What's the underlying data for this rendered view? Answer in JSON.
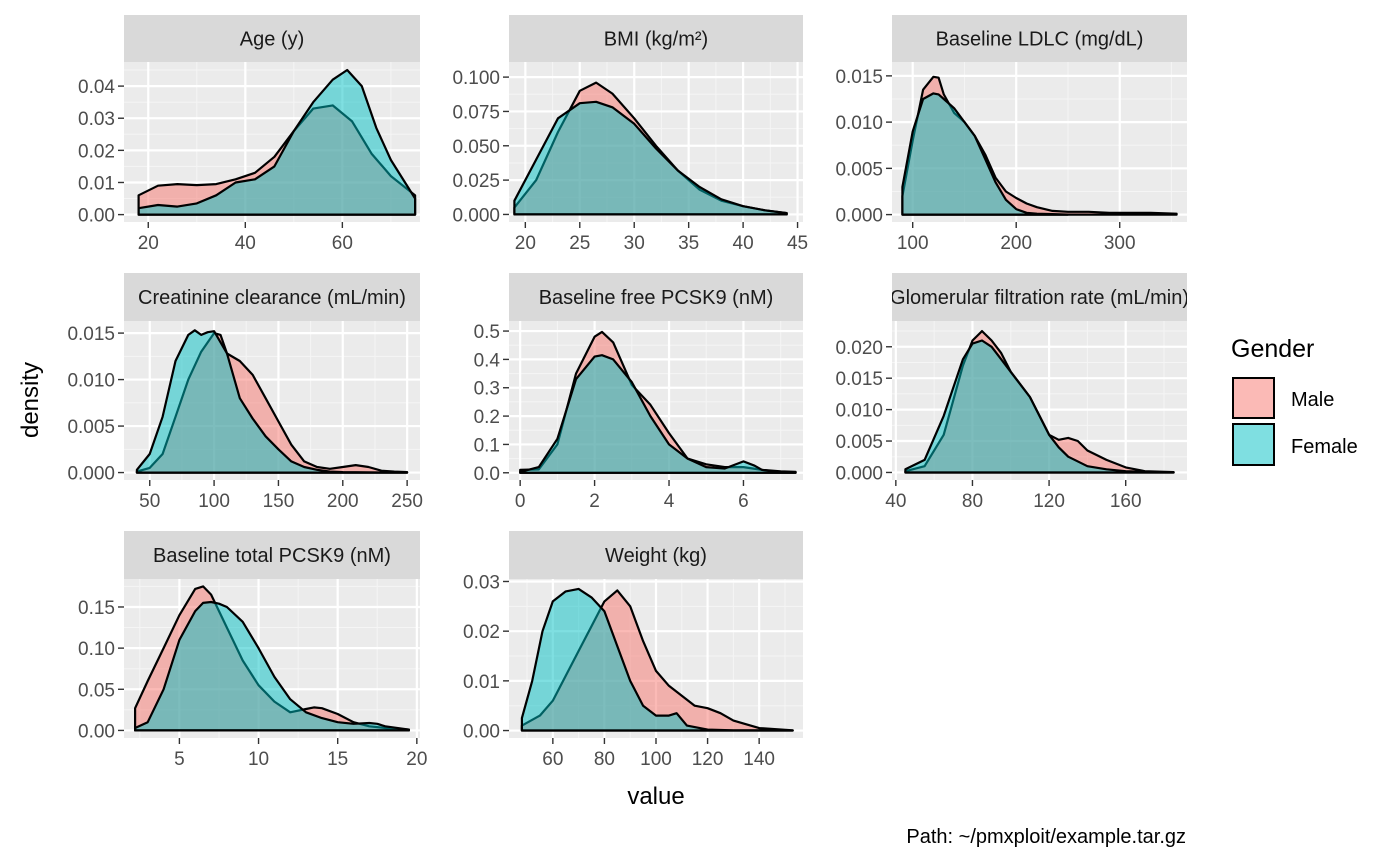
{
  "chart_data": {
    "type": "area",
    "xlabel": "value",
    "ylabel": "density",
    "caption": "Path: ~/pmxploit/example.tar.gz",
    "legend": {
      "title": "Gender",
      "position": "right",
      "entries": [
        {
          "name": "Male",
          "color": "#F8766D"
        },
        {
          "name": "Female",
          "color": "#00BFC4"
        }
      ]
    },
    "grid": true,
    "panels": [
      {
        "title": "Age (y)",
        "xlim": [
          15,
          76
        ],
        "ylim": [
          -0.0023,
          0.0475
        ],
        "xticks": [
          20,
          40,
          60
        ],
        "xtick_labels": [
          "20",
          "40",
          "60"
        ],
        "yticks": [
          0,
          0.01,
          0.02,
          0.03,
          0.04
        ],
        "ytick_labels": [
          "0.00",
          "0.01",
          "0.02",
          "0.03",
          "0.04"
        ],
        "series": [
          {
            "name": "Male",
            "x": [
              18,
              22,
              26,
              30,
              34,
              38,
              42,
              46,
              50,
              54,
              58,
              62,
              66,
              70,
              75
            ],
            "y": [
              0.006,
              0.009,
              0.0095,
              0.0092,
              0.0095,
              0.011,
              0.013,
              0.018,
              0.026,
              0.033,
              0.034,
              0.029,
              0.019,
              0.012,
              0.006
            ]
          },
          {
            "name": "Female",
            "x": [
              18,
              22,
              26,
              30,
              34,
              38,
              42,
              46,
              50,
              54,
              58,
              61,
              64,
              67,
              70,
              75
            ],
            "y": [
              0.002,
              0.003,
              0.0025,
              0.0035,
              0.006,
              0.01,
              0.011,
              0.015,
              0.026,
              0.035,
              0.042,
              0.045,
              0.04,
              0.027,
              0.017,
              0.005
            ]
          }
        ]
      },
      {
        "title": "BMI (kg/m²)",
        "xlim": [
          18.5,
          45.5
        ],
        "ylim": [
          -0.0055,
          0.111
        ],
        "xticks": [
          20,
          25,
          30,
          35,
          40,
          45
        ],
        "xtick_labels": [
          "20",
          "25",
          "30",
          "35",
          "40",
          "45"
        ],
        "yticks": [
          0,
          0.025,
          0.05,
          0.075,
          0.1
        ],
        "ytick_labels": [
          "0.000",
          "0.025",
          "0.050",
          "0.075",
          "0.100"
        ],
        "series": [
          {
            "name": "Male",
            "x": [
              19,
              21,
              23,
              25,
              26.5,
              28,
              30,
              32,
              34,
              36,
              38,
              40,
              42,
              44
            ],
            "y": [
              0.005,
              0.025,
              0.06,
              0.09,
              0.096,
              0.088,
              0.07,
              0.05,
              0.032,
              0.018,
              0.01,
              0.006,
              0.003,
              0.001
            ]
          },
          {
            "name": "Female",
            "x": [
              19,
              21,
              23,
              25,
              26.5,
              28,
              30,
              32,
              34,
              36,
              38,
              40,
              42,
              44
            ],
            "y": [
              0.01,
              0.04,
              0.07,
              0.081,
              0.082,
              0.078,
              0.066,
              0.048,
              0.032,
              0.02,
              0.011,
              0.006,
              0.003,
              0.001
            ]
          }
        ]
      },
      {
        "title": "Baseline LDLC (mg/dL)",
        "xlim": [
          80,
          365
        ],
        "ylim": [
          -0.0008,
          0.0165
        ],
        "xticks": [
          100,
          200,
          300
        ],
        "xtick_labels": [
          "100",
          "200",
          "300"
        ],
        "yticks": [
          0,
          0.005,
          0.01,
          0.015
        ],
        "ytick_labels": [
          "0.000",
          "0.005",
          "0.010",
          "0.015"
        ],
        "series": [
          {
            "name": "Male",
            "x": [
              90,
              100,
              110,
              120,
              125,
              130,
              140,
              150,
              160,
              170,
              180,
              190,
              200,
              210,
              220,
              235,
              250,
              270,
              290,
              310,
              330,
              355
            ],
            "y": [
              0.002,
              0.008,
              0.0135,
              0.0149,
              0.0148,
              0.013,
              0.011,
              0.01,
              0.0085,
              0.0065,
              0.004,
              0.0025,
              0.0018,
              0.0012,
              0.0008,
              0.0004,
              0.0003,
              0.0003,
              0.0002,
              0.0002,
              0.0002,
              0.0001
            ]
          },
          {
            "name": "Female",
            "x": [
              90,
              100,
              110,
              120,
              125,
              130,
              140,
              150,
              160,
              170,
              180,
              190,
              200,
              210,
              220,
              235,
              250
            ],
            "y": [
              0.003,
              0.009,
              0.0125,
              0.0131,
              0.013,
              0.0125,
              0.0115,
              0.01,
              0.0085,
              0.006,
              0.0035,
              0.0016,
              0.0006,
              0.0002,
              0.0001,
              5e-05,
              0
            ]
          }
        ]
      },
      {
        "title": "Creatinine clearance (mL/min)",
        "xlim": [
          30,
          260
        ],
        "ylim": [
          -0.0008,
          0.0163
        ],
        "xticks": [
          50,
          100,
          150,
          200,
          250
        ],
        "xtick_labels": [
          "50",
          "100",
          "150",
          "200",
          "250"
        ],
        "yticks": [
          0,
          0.005,
          0.01,
          0.015
        ],
        "ytick_labels": [
          "0.000",
          "0.005",
          "0.010",
          "0.015"
        ],
        "series": [
          {
            "name": "Male",
            "x": [
              40,
              50,
              60,
              70,
              80,
              90,
              100,
              105,
              110,
              120,
              130,
              140,
              150,
              160,
              170,
              180,
              190,
              200,
              210,
              220,
              230,
              240,
              250
            ],
            "y": [
              0.0001,
              0.0005,
              0.002,
              0.006,
              0.01,
              0.013,
              0.015,
              0.0148,
              0.0128,
              0.012,
              0.0105,
              0.008,
              0.0055,
              0.003,
              0.0012,
              0.0006,
              0.0004,
              0.0006,
              0.0008,
              0.0006,
              0.0002,
              0.0001,
              5e-05
            ]
          },
          {
            "name": "Female",
            "x": [
              40,
              50,
              60,
              70,
              80,
              85,
              90,
              95,
              100,
              110,
              120,
              130,
              140,
              150,
              160,
              170,
              180,
              190,
              200,
              220,
              250
            ],
            "y": [
              0.0003,
              0.002,
              0.006,
              0.012,
              0.0148,
              0.0153,
              0.0148,
              0.0151,
              0.0152,
              0.0128,
              0.008,
              0.0058,
              0.0039,
              0.0025,
              0.0012,
              0.0006,
              0.0003,
              0.0001,
              5e-05,
              2e-05,
              0
            ]
          }
        ]
      },
      {
        "title": "Baseline free PCSK9 (nM)",
        "xlim": [
          -0.3,
          7.6
        ],
        "ylim": [
          -0.0255,
          0.5355
        ],
        "xticks": [
          0,
          2,
          4,
          6
        ],
        "xtick_labels": [
          "0",
          "2",
          "4",
          "6"
        ],
        "yticks": [
          0,
          0.1,
          0.2,
          0.3,
          0.4,
          0.5
        ],
        "ytick_labels": [
          "0.0",
          "0.1",
          "0.2",
          "0.3",
          "0.4",
          "0.5"
        ],
        "series": [
          {
            "name": "Male",
            "x": [
              0,
              0.5,
              1.0,
              1.5,
              2.0,
              2.2,
              2.5,
              3.0,
              3.5,
              4.0,
              4.5,
              5.0,
              5.5,
              6.0,
              6.5,
              7.0,
              7.4
            ],
            "y": [
              0.01,
              0.012,
              0.1,
              0.35,
              0.48,
              0.497,
              0.46,
              0.31,
              0.24,
              0.14,
              0.05,
              0.03,
              0.02,
              0.02,
              0.01,
              0.005,
              0.003
            ]
          },
          {
            "name": "Female",
            "x": [
              0,
              0.5,
              1.0,
              1.5,
              2.0,
              2.2,
              2.5,
              3.0,
              3.5,
              4.0,
              4.5,
              5.0,
              5.5,
              6.0,
              6.3,
              6.5,
              7.0,
              7.4
            ],
            "y": [
              0.003,
              0.02,
              0.12,
              0.33,
              0.41,
              0.415,
              0.4,
              0.32,
              0.2,
              0.1,
              0.05,
              0.02,
              0.015,
              0.04,
              0.025,
              0.01,
              0.002,
              0.001
            ]
          }
        ]
      },
      {
        "title": "Glomerular filtration rate (mL/min)",
        "xlim": [
          38,
          192
        ],
        "ylim": [
          -0.0012,
          0.0241
        ],
        "xticks": [
          40,
          80,
          120,
          160
        ],
        "xtick_labels": [
          "40",
          "80",
          "120",
          "160"
        ],
        "yticks": [
          0,
          0.005,
          0.01,
          0.015,
          0.02
        ],
        "ytick_labels": [
          "0.000",
          "0.005",
          "0.010",
          "0.015",
          "0.020"
        ],
        "series": [
          {
            "name": "Male",
            "x": [
              45,
              55,
              65,
              75,
              80,
              85,
              90,
              95,
              100,
              110,
              120,
              125,
              130,
              135,
              140,
              150,
              160,
              170,
              185
            ],
            "y": [
              0.0002,
              0.001,
              0.006,
              0.017,
              0.021,
              0.0225,
              0.021,
              0.019,
              0.016,
              0.012,
              0.006,
              0.0052,
              0.0055,
              0.005,
              0.0035,
              0.002,
              0.0008,
              0.0002,
              5e-05
            ]
          },
          {
            "name": "Female",
            "x": [
              45,
              55,
              65,
              75,
              80,
              85,
              90,
              95,
              100,
              110,
              120,
              125,
              130,
              140,
              150,
              160,
              170,
              185
            ],
            "y": [
              0.0005,
              0.002,
              0.009,
              0.018,
              0.0205,
              0.021,
              0.02,
              0.018,
              0.016,
              0.012,
              0.006,
              0.004,
              0.0025,
              0.001,
              0.0005,
              0.0002,
              0.0001,
              3e-05
            ]
          }
        ]
      },
      {
        "title": "Baseline total PCSK9 (nM)",
        "xlim": [
          1.5,
          20.2
        ],
        "ylim": [
          -0.0092,
          0.184
        ],
        "xticks": [
          5,
          10,
          15,
          20
        ],
        "xtick_labels": [
          "5",
          "10",
          "15",
          "20"
        ],
        "yticks": [
          0,
          0.05,
          0.1,
          0.15
        ],
        "ytick_labels": [
          "0.00",
          "0.05",
          "0.10",
          "0.15"
        ],
        "series": [
          {
            "name": "Male",
            "x": [
              2.2,
              3,
              4,
              5,
              6,
              6.5,
              7,
              8,
              9,
              10,
              11,
              12,
              13,
              13.5,
              14,
              15,
              16,
              17,
              18,
              19.5
            ],
            "y": [
              0.027,
              0.06,
              0.1,
              0.14,
              0.172,
              0.175,
              0.165,
              0.125,
              0.085,
              0.055,
              0.035,
              0.022,
              0.026,
              0.028,
              0.027,
              0.02,
              0.01,
              0.005,
              0.003,
              0.001
            ]
          },
          {
            "name": "Female",
            "x": [
              2.2,
              3,
              4,
              5,
              6,
              6.5,
              7,
              7.5,
              8,
              9,
              10,
              11,
              12,
              13,
              14,
              15,
              16,
              17,
              17.5,
              18,
              19.5
            ],
            "y": [
              0.003,
              0.01,
              0.05,
              0.11,
              0.145,
              0.155,
              0.156,
              0.154,
              0.15,
              0.132,
              0.1,
              0.065,
              0.038,
              0.022,
              0.015,
              0.01,
              0.008,
              0.009,
              0.008,
              0.005,
              0.001
            ]
          }
        ]
      },
      {
        "title": "Weight (kg)",
        "xlim": [
          43,
          157
        ],
        "ylim": [
          -0.0015,
          0.0305
        ],
        "xticks": [
          60,
          80,
          100,
          120,
          140
        ],
        "xtick_labels": [
          "60",
          "80",
          "100",
          "120",
          "140"
        ],
        "yticks": [
          0,
          0.01,
          0.02,
          0.03
        ],
        "ytick_labels": [
          "0.00",
          "0.01",
          "0.02",
          "0.03"
        ],
        "series": [
          {
            "name": "Male",
            "x": [
              48,
              55,
              60,
              65,
              70,
              75,
              80,
              85,
              90,
              95,
              100,
              105,
              110,
              115,
              120,
              125,
              130,
              140,
              153
            ],
            "y": [
              0.001,
              0.003,
              0.006,
              0.011,
              0.016,
              0.021,
              0.026,
              0.0282,
              0.025,
              0.018,
              0.012,
              0.009,
              0.007,
              0.005,
              0.0045,
              0.0035,
              0.002,
              0.0005,
              5e-05
            ]
          },
          {
            "name": "Female",
            "x": [
              48,
              52,
              56,
              60,
              65,
              70,
              75,
              80,
              85,
              90,
              95,
              100,
              105,
              108,
              112,
              120,
              130,
              153
            ],
            "y": [
              0.0025,
              0.01,
              0.02,
              0.026,
              0.028,
              0.0285,
              0.0268,
              0.024,
              0.017,
              0.01,
              0.005,
              0.003,
              0.003,
              0.0035,
              0.001,
              0.0002,
              5e-05,
              0
            ]
          }
        ]
      }
    ]
  }
}
